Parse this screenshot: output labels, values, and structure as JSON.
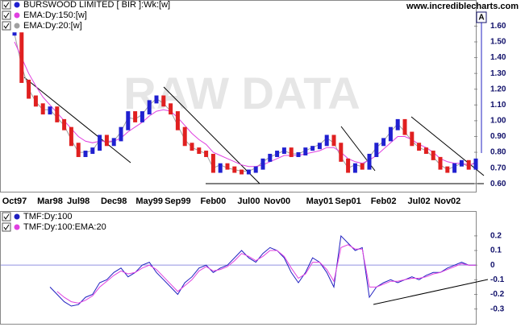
{
  "chart_data": [
    {
      "type": "price",
      "watermark": "RAW DATA",
      "source": "www.incrediblecharts.com",
      "marker": "A",
      "categories": [
        "Oct97",
        null,
        null,
        null,
        null,
        "Mar98",
        null,
        null,
        null,
        "Jul98",
        null,
        null,
        null,
        null,
        "Dec98",
        null,
        null,
        null,
        null,
        "May99",
        null,
        null,
        null,
        "Sep99",
        null,
        null,
        null,
        null,
        "Feb00",
        null,
        null,
        null,
        null,
        "Jul00",
        null,
        null,
        null,
        "Nov00",
        null,
        null,
        null,
        null,
        null,
        "May01",
        null,
        null,
        null,
        "Sep01",
        null,
        null,
        null,
        null,
        "Feb02",
        null,
        null,
        null,
        null,
        "Jul02",
        null,
        null,
        null,
        "Nov02",
        null,
        null,
        null,
        null
      ],
      "series": [
        {
          "name": "BURSWOOD LIMITED [ BIR ]:Wk:[w]",
          "color": "#2020d0",
          "down_color": "#e02020",
          "values": [
            1.55,
            1.25,
            1.15,
            1.1,
            1.05,
            1.08,
            1.0,
            0.95,
            0.85,
            0.78,
            0.8,
            0.82,
            0.9,
            0.85,
            0.88,
            0.95,
            1.05,
            1.0,
            1.05,
            1.12,
            1.15,
            1.1,
            1.05,
            0.95,
            0.85,
            0.82,
            0.8,
            0.78,
            0.68,
            0.72,
            0.7,
            0.68,
            0.67,
            0.68,
            0.7,
            0.75,
            0.78,
            0.8,
            0.82,
            0.78,
            0.79,
            0.82,
            0.83,
            0.85,
            0.9,
            0.85,
            0.75,
            0.68,
            0.72,
            0.7,
            0.78,
            0.85,
            0.88,
            0.95,
            1.0,
            0.92,
            0.85,
            0.82,
            0.8,
            0.76,
            0.7,
            0.68,
            0.72,
            0.74,
            0.7,
            0.75
          ]
        },
        {
          "name": "EMA:Dy:150:[w]",
          "color": "#e040e0",
          "values": [
            1.5,
            1.4,
            1.3,
            1.22,
            1.15,
            1.1,
            1.05,
            1.0,
            0.95,
            0.9,
            0.87,
            0.86,
            0.87,
            0.87,
            0.87,
            0.89,
            0.93,
            0.96,
            0.99,
            1.03,
            1.06,
            1.07,
            1.06,
            1.02,
            0.97,
            0.92,
            0.88,
            0.85,
            0.8,
            0.78,
            0.76,
            0.74,
            0.72,
            0.71,
            0.71,
            0.72,
            0.74,
            0.76,
            0.78,
            0.78,
            0.78,
            0.79,
            0.8,
            0.81,
            0.83,
            0.83,
            0.8,
            0.76,
            0.74,
            0.73,
            0.75,
            0.78,
            0.82,
            0.86,
            0.9,
            0.9,
            0.88,
            0.85,
            0.83,
            0.8,
            0.76,
            0.74,
            0.73,
            0.73,
            0.72,
            0.73
          ]
        },
        {
          "name": "EMA:Dy:20:[w]",
          "color": "#a0a0a0",
          "values": [
            1.55,
            1.35,
            1.2,
            1.12,
            1.07,
            1.07,
            1.02,
            0.97,
            0.88,
            0.8,
            0.8,
            0.81,
            0.88,
            0.86,
            0.87,
            0.93,
            1.02,
            1.01,
            1.04,
            1.1,
            1.14,
            1.11,
            1.06,
            0.97,
            0.88,
            0.83,
            0.81,
            0.79,
            0.7,
            0.72,
            0.7,
            0.69,
            0.68,
            0.68,
            0.7,
            0.74,
            0.77,
            0.79,
            0.81,
            0.79,
            0.79,
            0.81,
            0.83,
            0.85,
            0.89,
            0.86,
            0.77,
            0.7,
            0.72,
            0.71,
            0.77,
            0.83,
            0.87,
            0.93,
            0.98,
            0.93,
            0.87,
            0.83,
            0.81,
            0.77,
            0.72,
            0.69,
            0.71,
            0.73,
            0.71,
            0.74
          ]
        }
      ],
      "ylim": [
        0.55,
        1.74
      ],
      "yticks": [
        {
          "value": 0.6,
          "label": "0.60"
        },
        {
          "value": 0.7,
          "label": "0.70"
        },
        {
          "value": 0.8,
          "label": "0.80"
        },
        {
          "value": 0.9,
          "label": "0.90"
        },
        {
          "value": 1.0,
          "label": "1.00"
        },
        {
          "value": 1.1,
          "label": "1.10"
        },
        {
          "value": 1.2,
          "label": "1.20"
        },
        {
          "value": 1.3,
          "label": "1.30"
        },
        {
          "value": 1.4,
          "label": "1.40"
        },
        {
          "value": 1.5,
          "label": "1.50"
        },
        {
          "value": 1.6,
          "label": "1.60"
        }
      ],
      "grid": false
    },
    {
      "type": "line",
      "series": [
        {
          "name": "TMF:Dy:100",
          "color": "#2020c0",
          "values": [
            null,
            null,
            null,
            null,
            null,
            -0.15,
            -0.2,
            -0.25,
            -0.28,
            -0.27,
            -0.22,
            -0.2,
            -0.12,
            -0.1,
            -0.05,
            -0.02,
            -0.08,
            -0.05,
            0.0,
            0.02,
            -0.05,
            -0.1,
            -0.15,
            -0.2,
            -0.12,
            -0.08,
            -0.02,
            0.0,
            -0.05,
            -0.02,
            0.0,
            0.05,
            0.1,
            0.05,
            0.02,
            0.08,
            0.12,
            0.1,
            0.05,
            -0.05,
            -0.12,
            -0.05,
            0.05,
            0.02,
            -0.05,
            -0.15,
            0.2,
            0.15,
            0.1,
            0.12,
            -0.22,
            -0.15,
            -0.12,
            -0.1,
            -0.12,
            -0.1,
            -0.08,
            -0.1,
            -0.07,
            -0.05,
            -0.05,
            -0.02,
            0.0,
            0.02,
            0.0,
            0.0
          ]
        },
        {
          "name": "TMF:Dy:100:EMA:20",
          "color": "#e040e0",
          "values": [
            null,
            null,
            null,
            null,
            null,
            null,
            -0.18,
            -0.22,
            -0.25,
            -0.26,
            -0.24,
            -0.21,
            -0.15,
            -0.11,
            -0.07,
            -0.04,
            -0.06,
            -0.05,
            -0.02,
            0.0,
            -0.03,
            -0.08,
            -0.13,
            -0.18,
            -0.14,
            -0.1,
            -0.04,
            -0.01,
            -0.04,
            -0.03,
            -0.01,
            0.03,
            0.08,
            0.06,
            0.03,
            0.06,
            0.1,
            0.1,
            0.06,
            -0.02,
            -0.09,
            -0.06,
            0.02,
            0.02,
            -0.03,
            -0.11,
            0.12,
            0.14,
            0.11,
            0.11,
            -0.15,
            -0.15,
            -0.13,
            -0.11,
            -0.11,
            -0.1,
            -0.09,
            -0.09,
            -0.08,
            -0.06,
            -0.05,
            -0.03,
            -0.01,
            0.01,
            0.0,
            0.0
          ]
        }
      ],
      "ylim": [
        -0.39,
        0.37
      ],
      "yticks": [
        -0.3,
        -0.2,
        -0.1,
        0,
        0.1,
        0.2
      ],
      "grid": true
    }
  ]
}
